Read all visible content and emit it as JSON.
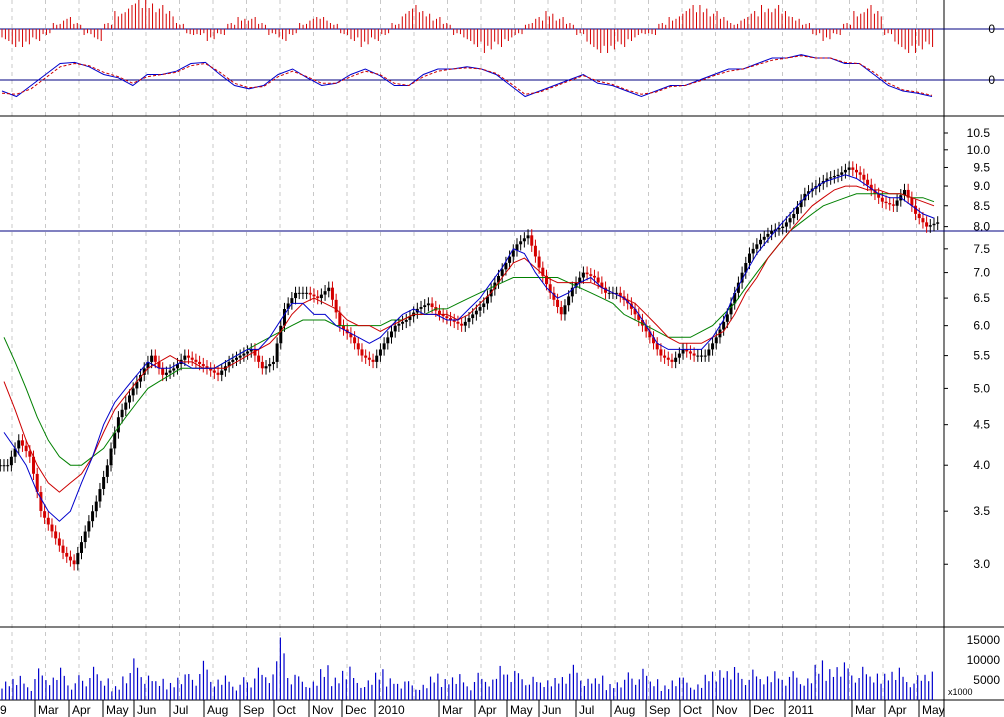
{
  "chart_data": [
    {
      "panel": "histogram-oscillator",
      "type": "bar",
      "colors": {
        "bars": "#d40000",
        "zero_line": "#000080"
      },
      "y_ticks": [
        "0"
      ],
      "y_reference": 0,
      "values": [
        -2,
        -3,
        -3,
        -2,
        -1,
        1,
        2,
        1,
        -1,
        -2,
        1,
        3,
        4,
        5,
        5,
        4,
        3,
        1,
        -1,
        -1,
        -2,
        -1,
        1,
        2,
        2,
        1,
        -1,
        -2,
        -1,
        1,
        2,
        2,
        1,
        -1,
        -2,
        -3,
        -2,
        -1,
        1,
        3,
        4,
        3,
        2,
        1,
        -1,
        -2,
        -3,
        -4,
        -3,
        -2,
        -1,
        1,
        2,
        3,
        2,
        1,
        -1,
        -3,
        -4,
        -4,
        -3,
        -2,
        -1,
        -1,
        1,
        2,
        3,
        4,
        4,
        3,
        2,
        1,
        2,
        3,
        4,
        4,
        3,
        2,
        1,
        -1,
        -2,
        -1,
        1,
        3,
        4,
        3,
        -1,
        -3,
        -4,
        -4,
        -3
      ]
    },
    {
      "panel": "oscillator-lines",
      "type": "line",
      "colors": {
        "main": "#0000cc",
        "signal": "#cc0000",
        "zero_line": "#000080"
      },
      "y_ticks": [
        "0"
      ],
      "y_reference": 0,
      "series": [
        {
          "values": [
            -1,
            -1.5,
            -0.5,
            0.5,
            1.5,
            1.6,
            1.2,
            0.5,
            0.2,
            -0.5,
            0.5,
            0.5,
            0.8,
            1.5,
            1.6,
            0.5,
            -0.5,
            -0.8,
            -0.5,
            0.5,
            1.0,
            0.2,
            -0.5,
            -0.3,
            0.5,
            1.0,
            0.4,
            -0.5,
            -0.5,
            0.5,
            1.0,
            1.0,
            1.2,
            1.0,
            0.5,
            -0.5,
            -1.5,
            -1.0,
            -0.5,
            0.0,
            0.5,
            -0.3,
            -0.5,
            -1.0,
            -1.5,
            -1.0,
            -0.5,
            -0.5,
            0.0,
            0.5,
            1.0,
            1.0,
            1.5,
            2.0,
            2.0,
            2.3,
            2.0,
            2.0,
            1.5,
            1.5,
            0.5,
            -0.5,
            -1.0,
            -1.2,
            -1.5
          ]
        },
        {
          "values": [
            -1.2,
            -1.3,
            -0.8,
            0.2,
            1.2,
            1.5,
            1.3,
            0.7,
            0.3,
            -0.3,
            0.3,
            0.5,
            0.7,
            1.3,
            1.5,
            0.7,
            -0.3,
            -0.7,
            -0.6,
            0.3,
            0.8,
            0.3,
            -0.3,
            -0.3,
            0.3,
            0.8,
            0.5,
            -0.3,
            -0.5,
            0.3,
            0.8,
            1.0,
            1.1,
            1.0,
            0.6,
            -0.3,
            -1.3,
            -1.1,
            -0.6,
            -0.1,
            0.4,
            -0.1,
            -0.4,
            -0.9,
            -1.3,
            -1.1,
            -0.6,
            -0.5,
            -0.1,
            0.4,
            0.8,
            1.0,
            1.4,
            1.8,
            2.0,
            2.2,
            2.0,
            2.0,
            1.6,
            1.5,
            0.7,
            -0.3,
            -0.9,
            -1.1,
            -1.4
          ]
        }
      ]
    },
    {
      "panel": "price",
      "type": "candlestick",
      "scale": "log",
      "colors": {
        "up": "#000000",
        "down": "#d40000",
        "ma_fast": "#0000cc",
        "ma_mid": "#cc0000",
        "ma_slow": "#008000",
        "hline": "#000080"
      },
      "y_ticks": [
        3.0,
        3.5,
        4.0,
        4.5,
        5.0,
        5.5,
        6.0,
        6.5,
        7.0,
        7.5,
        8.0,
        8.5,
        9.0,
        9.5,
        10.0,
        10.5
      ],
      "y_tick_labels": [
        "3.0",
        "3.5",
        "4.0",
        "4.5",
        "5.0",
        "5.5",
        "6.0",
        "6.5",
        "7.0",
        "7.5",
        "8.0",
        "8.5",
        "9.0",
        "9.5",
        "10.0",
        "10.5"
      ],
      "horizontal_line": 7.9,
      "ylim": [
        2.5,
        11.0
      ],
      "close": [
        4.0,
        4.3,
        4.1,
        3.5,
        3.3,
        3.1,
        3.0,
        3.3,
        3.6,
        4.0,
        4.6,
        4.9,
        5.2,
        5.5,
        5.2,
        5.3,
        5.5,
        5.4,
        5.3,
        5.2,
        5.4,
        5.5,
        5.6,
        5.3,
        5.4,
        6.3,
        6.6,
        6.6,
        6.5,
        6.7,
        6.0,
        5.8,
        5.5,
        5.4,
        5.7,
        6.0,
        6.1,
        6.3,
        6.4,
        6.2,
        6.1,
        6.0,
        6.2,
        6.4,
        6.8,
        7.2,
        7.6,
        7.8,
        7.1,
        6.6,
        6.2,
        6.7,
        7.0,
        6.9,
        6.6,
        6.6,
        6.4,
        6.1,
        5.8,
        5.5,
        5.4,
        5.6,
        5.5,
        5.5,
        5.8,
        6.2,
        6.8,
        7.4,
        7.7,
        7.9,
        8.0,
        8.3,
        8.8,
        9.0,
        9.2,
        9.3,
        9.5,
        9.3,
        8.9,
        8.6,
        8.5,
        8.9,
        8.3,
        8.0,
        8.1
      ],
      "ma_fast": [
        4.4,
        4.2,
        4.0,
        3.7,
        3.5,
        3.4,
        3.5,
        3.8,
        4.1,
        4.5,
        4.8,
        5.0,
        5.2,
        5.4,
        5.3,
        5.3,
        5.4,
        5.3,
        5.3,
        5.3,
        5.4,
        5.5,
        5.6,
        5.6,
        5.8,
        6.1,
        6.4,
        6.4,
        6.2,
        6.2,
        6.0,
        5.9,
        5.8,
        5.7,
        5.8,
        6.0,
        6.2,
        6.3,
        6.2,
        6.2,
        6.1,
        6.1,
        6.3,
        6.5,
        6.8,
        7.1,
        7.5,
        7.4,
        7.0,
        6.7,
        6.5,
        6.6,
        6.8,
        6.9,
        6.7,
        6.6,
        6.5,
        6.3,
        6.0,
        5.7,
        5.6,
        5.6,
        5.6,
        5.6,
        5.8,
        6.1,
        6.6,
        7.0,
        7.4,
        7.7,
        8.0,
        8.3,
        8.6,
        8.9,
        9.1,
        9.2,
        9.3,
        9.2,
        9.0,
        8.8,
        8.7,
        8.7,
        8.5,
        8.3,
        8.2
      ],
      "ma_mid": [
        5.1,
        4.7,
        4.3,
        4.0,
        3.8,
        3.7,
        3.8,
        3.9,
        4.1,
        4.4,
        4.7,
        4.9,
        5.1,
        5.3,
        5.4,
        5.5,
        5.4,
        5.4,
        5.3,
        5.3,
        5.3,
        5.4,
        5.5,
        5.6,
        5.7,
        5.9,
        6.2,
        6.4,
        6.5,
        6.4,
        6.3,
        6.1,
        6.0,
        6.0,
        5.9,
        6.0,
        6.1,
        6.2,
        6.2,
        6.2,
        6.2,
        6.1,
        6.2,
        6.4,
        6.6,
        6.9,
        7.2,
        7.3,
        7.1,
        6.9,
        6.8,
        6.8,
        6.8,
        6.8,
        6.7,
        6.6,
        6.5,
        6.4,
        6.2,
        6.0,
        5.8,
        5.7,
        5.7,
        5.7,
        5.8,
        5.9,
        6.2,
        6.6,
        6.9,
        7.3,
        7.6,
        7.9,
        8.2,
        8.5,
        8.7,
        8.9,
        9.0,
        9.0,
        8.9,
        8.9,
        8.8,
        8.8,
        8.7,
        8.6,
        8.5
      ],
      "ma_slow": [
        5.8,
        5.4,
        5.0,
        4.6,
        4.3,
        4.1,
        4.0,
        4.0,
        4.1,
        4.2,
        4.4,
        4.6,
        4.8,
        5.0,
        5.1,
        5.2,
        5.3,
        5.3,
        5.3,
        5.3,
        5.4,
        5.5,
        5.6,
        5.7,
        5.8,
        5.9,
        6.0,
        6.1,
        6.1,
        6.1,
        6.0,
        6.0,
        6.0,
        6.0,
        6.0,
        6.1,
        6.1,
        6.2,
        6.2,
        6.3,
        6.3,
        6.4,
        6.5,
        6.6,
        6.7,
        6.8,
        6.9,
        6.9,
        6.9,
        6.9,
        6.9,
        6.8,
        6.7,
        6.6,
        6.5,
        6.4,
        6.2,
        6.1,
        6.0,
        5.9,
        5.8,
        5.8,
        5.8,
        5.9,
        6.0,
        6.2,
        6.4,
        6.7,
        7.0,
        7.3,
        7.6,
        7.9,
        8.1,
        8.3,
        8.5,
        8.6,
        8.7,
        8.8,
        8.8,
        8.8,
        8.8,
        8.8,
        8.7,
        8.7,
        8.6
      ]
    },
    {
      "panel": "volume",
      "type": "bar",
      "colors": {
        "bars": "#0000cc"
      },
      "y_ticks": [
        5000,
        10000,
        15000
      ],
      "y_tick_labels": [
        "5000",
        "10000",
        "15000"
      ],
      "unit_label": "x1000",
      "ylim": [
        0,
        18000
      ],
      "values": [
        5200,
        6800,
        4100,
        7900,
        5600,
        9100,
        4700,
        6200,
        8300,
        5400,
        3900,
        7600,
        10400,
        6100,
        5300,
        4800,
        7200,
        6500,
        9800,
        5100,
        6900,
        4300,
        5700,
        8100,
        6400,
        17600,
        7100,
        5900,
        4600,
        8700,
        6300,
        9400,
        5500,
        4900,
        7700,
        6100,
        5200,
        4700,
        3800,
        6600,
        5900,
        7300,
        4400,
        6800,
        5100,
        9600,
        8200,
        6700,
        5800,
        4900,
        6200,
        7400,
        8800,
        5300,
        6100,
        4500,
        5700,
        6900,
        7800,
        5200,
        4100,
        6300,
        5600,
        3900,
        7100,
        8400,
        9300,
        6800,
        7600,
        5900,
        8100,
        6500,
        7200,
        5400,
        9900,
        8700,
        10600,
        7900,
        8300,
        6600,
        7400,
        9100,
        5800,
        6200,
        7100
      ],
      "months": [
        "Mar",
        "Apr",
        "May",
        "Jun",
        "Jul",
        "Aug",
        "Sep",
        "Oct",
        "Nov",
        "Dec",
        "2010",
        "Mar",
        "Apr",
        "May",
        "Jun",
        "Jul",
        "Aug",
        "Sep",
        "Oct",
        "Nov",
        "Dec",
        "2011",
        "Mar",
        "Apr",
        "May"
      ],
      "left_edge_label": "9"
    }
  ]
}
